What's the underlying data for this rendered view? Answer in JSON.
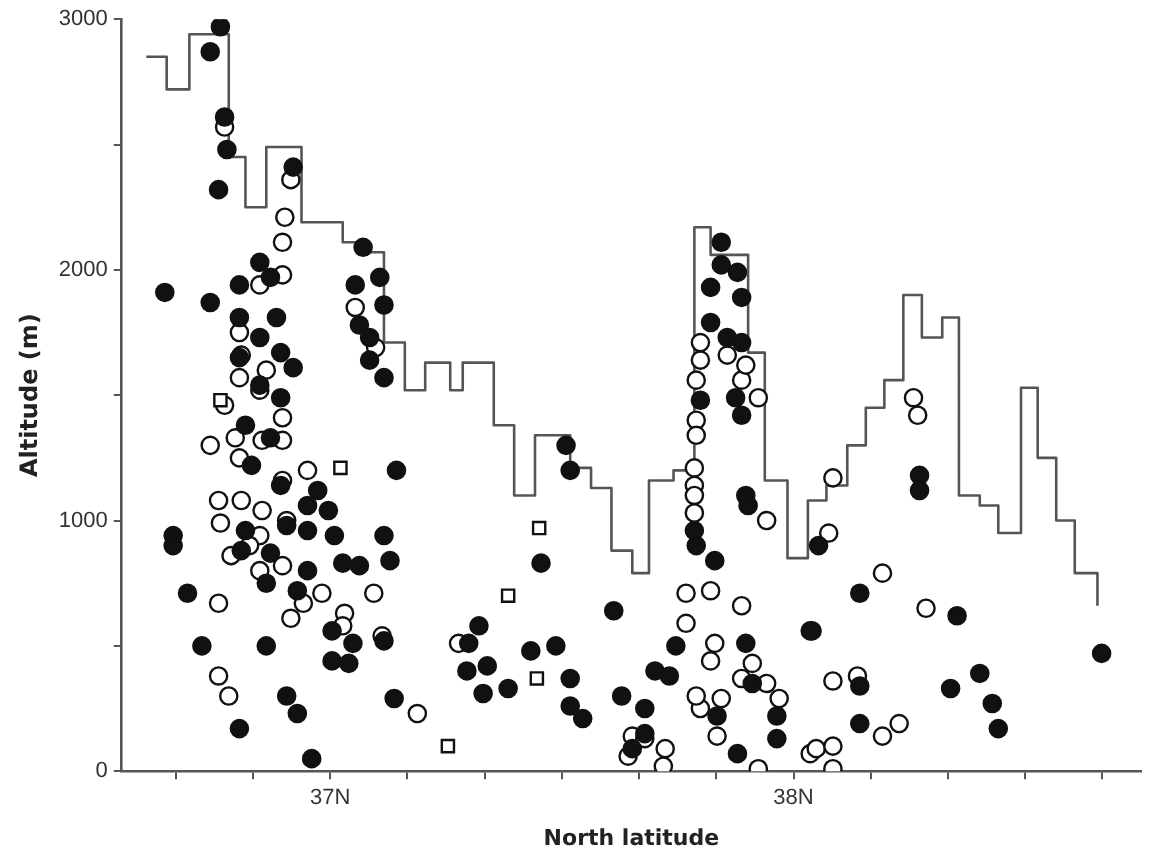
{
  "chart_data": {
    "type": "scatter",
    "xlabel": "North latitude",
    "ylabel": "Altitude (m)",
    "xlim": [
      36.55,
      38.75
    ],
    "ylim": [
      0,
      3000
    ],
    "xticks": [
      {
        "value": 36.6667,
        "label": null
      },
      {
        "value": 36.8333,
        "label": null
      },
      {
        "value": 37,
        "label": "37N"
      },
      {
        "value": 37.1667,
        "label": null
      },
      {
        "value": 37.3333,
        "label": null
      },
      {
        "value": 37.5,
        "label": null
      },
      {
        "value": 37.6667,
        "label": null
      },
      {
        "value": 37.8333,
        "label": null
      },
      {
        "value": 38,
        "label": "38N"
      },
      {
        "value": 38.1667,
        "label": null
      },
      {
        "value": 38.3333,
        "label": null
      },
      {
        "value": 38.5,
        "label": null
      },
      {
        "value": 38.6667,
        "label": null
      }
    ],
    "yticks": [
      0,
      {
        "value": 500,
        "label": null
      },
      1000,
      {
        "value": 1500,
        "label": null
      },
      2000,
      {
        "value": 2500,
        "label": null
      },
      3000
    ],
    "series": [
      {
        "type": "step",
        "marker": "none",
        "color": "#555555",
        "x": [
          36.603,
          36.647,
          36.696,
          36.781,
          36.817,
          36.862,
          36.938,
          37.027,
          37.071,
          37.116,
          37.161,
          37.205,
          37.259,
          37.286,
          37.353,
          37.397,
          37.442,
          37.518,
          37.563,
          37.607,
          37.652,
          37.688,
          37.741,
          37.786,
          37.821,
          37.902,
          37.938,
          37.987,
          38.031,
          38.071,
          38.116,
          38.156,
          38.196,
          38.237,
          38.277,
          38.321,
          38.357,
          38.402,
          38.442,
          38.491,
          38.527,
          38.567,
          38.607,
          38.656
        ],
        "values": [
          2850,
          2720,
          2940,
          2450,
          2250,
          2490,
          2190,
          2110,
          2070,
          1710,
          1520,
          1630,
          1520,
          1630,
          1380,
          1100,
          1340,
          1210,
          1130,
          880,
          790,
          1160,
          1200,
          2170,
          2060,
          1670,
          1160,
          850,
          1080,
          1140,
          1300,
          1450,
          1560,
          1900,
          1730,
          1810,
          1100,
          1060,
          950,
          1530,
          1250,
          1000,
          790,
          660
        ]
      },
      {
        "type": "scatter",
        "marker": "circle",
        "color": "#111111",
        "x": [
          36.763,
          36.741,
          36.772,
          36.777,
          36.759,
          36.92,
          37.071,
          36.643,
          36.741,
          36.848,
          36.804,
          36.871,
          37.054,
          37.107,
          37.116,
          37.063,
          37.085,
          36.804,
          36.884,
          36.848,
          36.893,
          36.804,
          36.92,
          37.085,
          37.116,
          36.848,
          36.893,
          36.817,
          36.871,
          36.83,
          36.893,
          36.973,
          36.951,
          36.996,
          37.143,
          36.817,
          36.906,
          36.951,
          37.009,
          37.116,
          36.661,
          36.661,
          36.808,
          36.871,
          36.951,
          37.027,
          37.063,
          37.129,
          36.862,
          36.929,
          36.692,
          37.004,
          37.049,
          37.116,
          37.004,
          37.04,
          36.723,
          36.862,
          37.295,
          36.906,
          36.929,
          37.138,
          36.804,
          36.96,
          37.509,
          37.518,
          37.897,
          37.902,
          37.786,
          37.79,
          37.83,
          37.455,
          37.612,
          37.321,
          37.299,
          37.339,
          37.33,
          37.384,
          37.433,
          37.487,
          37.518,
          37.518,
          37.545,
          37.629,
          37.679,
          37.746,
          37.701,
          37.732,
          37.897,
          37.911,
          37.679,
          37.652,
          37.835,
          37.879,
          37.964,
          37.964,
          38.036,
          37.799,
          37.875,
          37.888,
          37.844,
          37.844,
          37.879,
          37.821,
          37.888,
          37.821,
          37.857,
          37.888,
          38.054,
          38.272,
          38.272,
          38.143,
          38.04,
          38.353,
          38.143,
          38.143,
          38.339,
          38.402,
          38.429,
          38.442,
          38.665
        ],
        "values": [
          2970,
          2870,
          2610,
          2480,
          2320,
          2410,
          2090,
          1910,
          1870,
          2030,
          1940,
          1970,
          1940,
          1970,
          1860,
          1780,
          1730,
          1810,
          1810,
          1730,
          1670,
          1650,
          1610,
          1640,
          1570,
          1540,
          1490,
          1380,
          1330,
          1220,
          1140,
          1120,
          1060,
          1040,
          1200,
          960,
          980,
          960,
          940,
          940,
          940,
          900,
          880,
          870,
          800,
          830,
          820,
          840,
          750,
          720,
          710,
          560,
          510,
          520,
          440,
          430,
          500,
          500,
          400,
          300,
          230,
          290,
          170,
          50,
          1300,
          1200,
          1100,
          1060,
          960,
          900,
          840,
          830,
          640,
          580,
          510,
          420,
          310,
          330,
          480,
          500,
          370,
          260,
          210,
          300,
          250,
          500,
          400,
          380,
          510,
          350,
          150,
          90,
          220,
          70,
          220,
          130,
          560,
          1480,
          1490,
          1420,
          2110,
          2020,
          1990,
          1930,
          1890,
          1790,
          1730,
          1710,
          900,
          1180,
          1120,
          710,
          560,
          620,
          340,
          190,
          330,
          390,
          270,
          170,
          470
        ]
      },
      {
        "type": "scatter",
        "marker": "circle",
        "color": "#ffffff",
        "x": [
          36.772,
          36.915,
          36.902,
          36.897,
          36.897,
          36.848,
          37.054,
          37.098,
          36.804,
          36.808,
          36.862,
          36.804,
          36.848,
          36.897,
          36.772,
          36.795,
          36.741,
          36.853,
          36.804,
          36.897,
          36.951,
          36.897,
          36.759,
          36.808,
          36.853,
          36.763,
          36.848,
          36.906,
          36.826,
          36.786,
          36.848,
          36.897,
          36.982,
          36.942,
          36.915,
          37.094,
          36.759,
          37.031,
          37.027,
          37.112,
          36.759,
          36.781,
          37.188,
          37.277,
          37.79,
          37.888,
          37.924,
          37.79,
          37.79,
          37.786,
          37.786,
          37.786,
          37.786,
          37.942,
          37.768,
          37.821,
          37.888,
          37.768,
          37.83,
          37.821,
          37.911,
          37.888,
          37.942,
          37.969,
          37.844,
          37.799,
          37.79,
          37.835,
          37.652,
          37.679,
          37.723,
          37.643,
          37.719,
          37.924,
          38.036,
          37.799,
          37.799,
          37.857,
          37.897,
          38.259,
          38.268,
          38.085,
          38.076,
          38.192,
          38.286,
          38.085,
          38.138,
          38.192,
          38.228,
          38.049,
          38.085,
          38.085
        ],
        "values": [
          2570,
          2360,
          2210,
          2110,
          1980,
          1940,
          1850,
          1690,
          1750,
          1660,
          1600,
          1570,
          1520,
          1410,
          1460,
          1330,
          1300,
          1320,
          1250,
          1320,
          1200,
          1160,
          1080,
          1080,
          1040,
          990,
          940,
          1000,
          900,
          860,
          800,
          820,
          710,
          670,
          610,
          710,
          670,
          630,
          580,
          540,
          380,
          300,
          230,
          510,
          1560,
          1560,
          1490,
          1400,
          1340,
          1210,
          1140,
          1100,
          1030,
          1000,
          710,
          720,
          660,
          590,
          510,
          440,
          430,
          370,
          350,
          290,
          290,
          250,
          300,
          140,
          140,
          130,
          90,
          60,
          20,
          10,
          70,
          1710,
          1640,
          1660,
          1620,
          1490,
          1420,
          1170,
          950,
          790,
          650,
          360,
          380,
          140,
          190,
          90,
          100,
          10
        ]
      },
      {
        "type": "scatter",
        "marker": "square",
        "color": "#ffffff",
        "x": [
          36.763,
          37.022,
          37.254,
          37.451,
          37.384,
          37.446
        ],
        "values": [
          1480,
          1210,
          100,
          970,
          700,
          370
        ]
      }
    ]
  }
}
